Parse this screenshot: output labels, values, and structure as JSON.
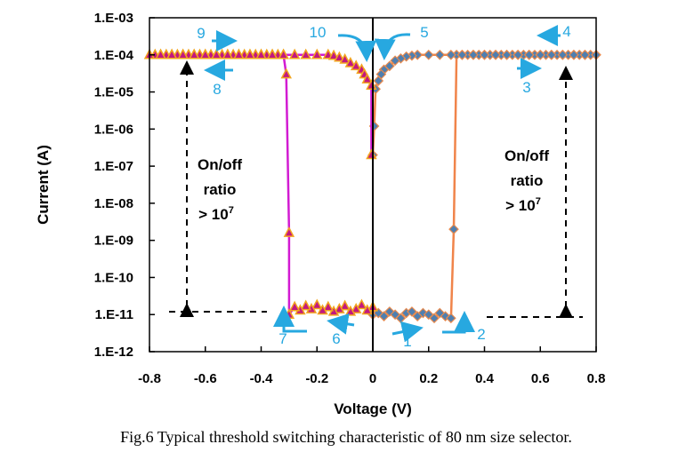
{
  "chart_data": {
    "type": "scatter",
    "xlabel": "Voltage (V)",
    "ylabel": "Current (A)",
    "xlim": [
      -0.8,
      0.8
    ],
    "ylim": [
      1e-12,
      0.001
    ],
    "yscale": "log",
    "xticks": [
      "-0.8",
      "-0.6",
      "-0.4",
      "-0.2",
      "0",
      "0.2",
      "0.4",
      "0.6",
      "0.8"
    ],
    "yticks": [
      "1.E-03",
      "1.E-04",
      "1.E-05",
      "1.E-06",
      "1.E-07",
      "1.E-08",
      "1.E-09",
      "1.E-10",
      "1.E-11",
      "1.E-12"
    ],
    "grid": false,
    "series": [
      {
        "marker": "diamond",
        "line_color": "#f0844a",
        "marker_fill": "#4f7fb0",
        "marker_edge": "#e88a4e",
        "points": [
          [
            0,
            1e-11
          ],
          [
            0.02,
            1.1e-11
          ],
          [
            0.04,
            9e-12
          ],
          [
            0.06,
            1.2e-11
          ],
          [
            0.08,
            1e-11
          ],
          [
            0.1,
            8e-12
          ],
          [
            0.12,
            1.1e-11
          ],
          [
            0.14,
            1.2e-11
          ],
          [
            0.16,
            9e-12
          ],
          [
            0.18,
            1.1e-11
          ],
          [
            0.2,
            1e-11
          ],
          [
            0.22,
            8e-12
          ],
          [
            0.24,
            1.1e-11
          ],
          [
            0.26,
            9e-12
          ],
          [
            0.28,
            8e-12
          ],
          [
            0.29,
            2e-09
          ],
          [
            0.3,
            0.0001
          ],
          [
            0.32,
            0.0001
          ],
          [
            0.34,
            0.0001
          ],
          [
            0.36,
            0.0001
          ],
          [
            0.38,
            0.0001
          ],
          [
            0.4,
            0.0001
          ],
          [
            0.42,
            0.0001
          ],
          [
            0.44,
            0.0001
          ],
          [
            0.46,
            0.0001
          ],
          [
            0.48,
            0.0001
          ],
          [
            0.5,
            0.0001
          ],
          [
            0.52,
            0.0001
          ],
          [
            0.54,
            0.0001
          ],
          [
            0.56,
            0.0001
          ],
          [
            0.58,
            0.0001
          ],
          [
            0.6,
            0.0001
          ],
          [
            0.62,
            0.0001
          ],
          [
            0.64,
            0.0001
          ],
          [
            0.66,
            0.0001
          ],
          [
            0.68,
            0.0001
          ],
          [
            0.7,
            0.0001
          ],
          [
            0.72,
            0.0001
          ],
          [
            0.74,
            0.0001
          ],
          [
            0.76,
            0.0001
          ],
          [
            0.78,
            0.0001
          ],
          [
            0.8,
            0.0001
          ],
          [
            0.76,
            0.0001
          ],
          [
            0.72,
            0.0001
          ],
          [
            0.68,
            0.0001
          ],
          [
            0.64,
            0.0001
          ],
          [
            0.6,
            0.0001
          ],
          [
            0.56,
            0.0001
          ],
          [
            0.52,
            0.0001
          ],
          [
            0.48,
            0.0001
          ],
          [
            0.44,
            0.0001
          ],
          [
            0.4,
            0.0001
          ],
          [
            0.36,
            0.0001
          ],
          [
            0.32,
            0.0001
          ],
          [
            0.28,
            0.0001
          ],
          [
            0.24,
            0.0001
          ],
          [
            0.2,
            0.0001
          ],
          [
            0.16,
            0.0001
          ],
          [
            0.14,
            9.5e-05
          ],
          [
            0.12,
            9e-05
          ],
          [
            0.1,
            8e-05
          ],
          [
            0.08,
            7e-05
          ],
          [
            0.06,
            5e-05
          ],
          [
            0.04,
            4e-05
          ],
          [
            0.03,
            3e-05
          ],
          [
            0.02,
            2e-05
          ],
          [
            0.01,
            1.2e-05
          ],
          [
            0.005,
            1.2e-06
          ],
          [
            0,
            2e-07
          ]
        ]
      },
      {
        "marker": "triangle",
        "line_color": "#d21bd2",
        "marker_fill": "#c2187f",
        "marker_edge": "#f2a51e",
        "points": [
          [
            0,
            1.6e-11
          ],
          [
            -0.02,
            1.3e-11
          ],
          [
            -0.04,
            1.8e-11
          ],
          [
            -0.06,
            1.4e-11
          ],
          [
            -0.08,
            1.2e-11
          ],
          [
            -0.1,
            1.7e-11
          ],
          [
            -0.12,
            1.4e-11
          ],
          [
            -0.14,
            1.2e-11
          ],
          [
            -0.16,
            1.6e-11
          ],
          [
            -0.18,
            1.3e-11
          ],
          [
            -0.2,
            1.8e-11
          ],
          [
            -0.22,
            1.4e-11
          ],
          [
            -0.24,
            1.7e-11
          ],
          [
            -0.26,
            1.3e-11
          ],
          [
            -0.28,
            1.6e-11
          ],
          [
            -0.3,
            1e-11
          ],
          [
            -0.3,
            1.6e-09
          ],
          [
            -0.31,
            3e-05
          ],
          [
            -0.32,
            0.0001
          ],
          [
            -0.34,
            0.0001
          ],
          [
            -0.36,
            0.0001
          ],
          [
            -0.38,
            0.0001
          ],
          [
            -0.4,
            0.0001
          ],
          [
            -0.42,
            0.0001
          ],
          [
            -0.44,
            0.0001
          ],
          [
            -0.46,
            0.0001
          ],
          [
            -0.48,
            0.0001
          ],
          [
            -0.5,
            0.0001
          ],
          [
            -0.52,
            0.0001
          ],
          [
            -0.54,
            0.0001
          ],
          [
            -0.56,
            0.0001
          ],
          [
            -0.58,
            0.0001
          ],
          [
            -0.6,
            0.0001
          ],
          [
            -0.62,
            0.0001
          ],
          [
            -0.64,
            0.0001
          ],
          [
            -0.66,
            0.0001
          ],
          [
            -0.68,
            0.0001
          ],
          [
            -0.7,
            0.0001
          ],
          [
            -0.72,
            0.0001
          ],
          [
            -0.74,
            0.0001
          ],
          [
            -0.76,
            0.0001
          ],
          [
            -0.78,
            0.0001
          ],
          [
            -0.8,
            0.0001
          ],
          [
            -0.76,
            0.0001
          ],
          [
            -0.72,
            0.0001
          ],
          [
            -0.68,
            0.0001
          ],
          [
            -0.64,
            0.0001
          ],
          [
            -0.6,
            0.0001
          ],
          [
            -0.56,
            0.0001
          ],
          [
            -0.52,
            0.0001
          ],
          [
            -0.48,
            0.0001
          ],
          [
            -0.44,
            0.0001
          ],
          [
            -0.4,
            0.0001
          ],
          [
            -0.36,
            0.0001
          ],
          [
            -0.32,
            0.0001
          ],
          [
            -0.28,
            0.0001
          ],
          [
            -0.24,
            0.0001
          ],
          [
            -0.2,
            0.0001
          ],
          [
            -0.16,
            0.0001
          ],
          [
            -0.14,
            9.5e-05
          ],
          [
            -0.12,
            8.5e-05
          ],
          [
            -0.1,
            7.5e-05
          ],
          [
            -0.08,
            6e-05
          ],
          [
            -0.06,
            5e-05
          ],
          [
            -0.04,
            4e-05
          ],
          [
            -0.03,
            3e-05
          ],
          [
            -0.02,
            2.2e-05
          ],
          [
            -0.005,
            1.5e-05
          ],
          [
            -0.005,
            2e-07
          ]
        ]
      }
    ],
    "annotations": {
      "steps": [
        "1",
        "2",
        "3",
        "4",
        "5",
        "6",
        "7",
        "8",
        "9",
        "10"
      ],
      "annotation_color": "#27a8e0",
      "ratio_left": {
        "line1": "On/off",
        "line2": "ratio",
        "line3": "> 10",
        "sup": "7"
      },
      "ratio_right": {
        "line1": "On/off",
        "line2": "ratio",
        "line3": "> 10",
        "sup": "7"
      }
    }
  },
  "caption": "Fig.6 Typical threshold switching characteristic of 80 nm size selector."
}
